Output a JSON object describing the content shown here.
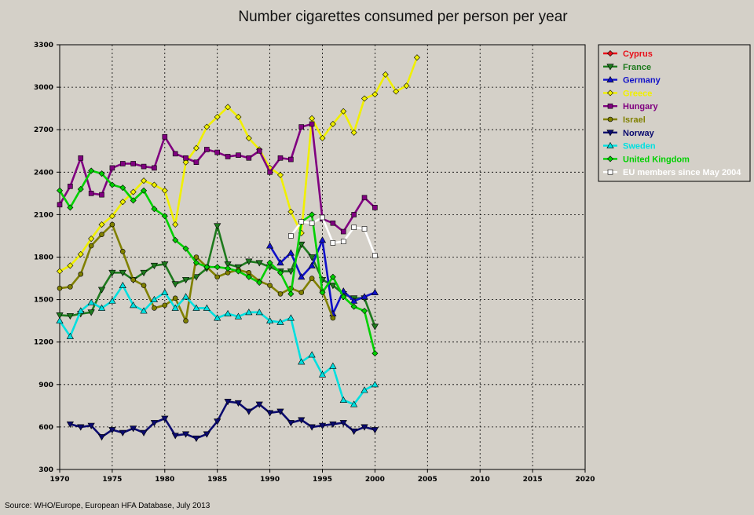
{
  "chart_data": {
    "type": "line",
    "title": "Number cigarettes consumed per person per year",
    "xlabel": "",
    "ylabel": "",
    "xlim": [
      1970,
      2020
    ],
    "ylim": [
      300,
      3300
    ],
    "x_ticks": [
      1970,
      1975,
      1980,
      1985,
      1990,
      1995,
      2000,
      2005,
      2010,
      2015,
      2020
    ],
    "y_ticks": [
      300,
      600,
      900,
      1200,
      1500,
      1800,
      2100,
      2400,
      2700,
      3000,
      3300
    ],
    "grid": true,
    "legend_position": "top-right",
    "source": "Source: WHO/Europe, European HFA Database, July 2013",
    "series": [
      {
        "name": "Cyprus",
        "color": "#e8101a",
        "marker": "diamond",
        "x": [],
        "y": []
      },
      {
        "name": "France",
        "color": "#1e7a1e",
        "marker": "triangle-down",
        "x": [
          1970,
          1971,
          1972,
          1973,
          1974,
          1975,
          1976,
          1977,
          1978,
          1979,
          1980,
          1981,
          1982,
          1983,
          1984,
          1985,
          1986,
          1987,
          1988,
          1989,
          1990,
          1991,
          1992,
          1993,
          1994,
          1995,
          1996,
          1997,
          1998,
          1999,
          2000
        ],
        "y": [
          1390,
          1385,
          1400,
          1410,
          1570,
          1690,
          1690,
          1640,
          1690,
          1740,
          1750,
          1610,
          1640,
          1660,
          1720,
          2020,
          1750,
          1730,
          1770,
          1760,
          1730,
          1700,
          1700,
          1890,
          1800,
          1640,
          1600,
          1540,
          1510,
          1510,
          1310
        ]
      },
      {
        "name": "Germany",
        "color": "#1010c8",
        "marker": "triangle-up",
        "x": [
          1990,
          1991,
          1992,
          1993,
          1994,
          1995,
          1996,
          1997,
          1998,
          1999,
          2000
        ],
        "y": [
          1880,
          1760,
          1830,
          1660,
          1740,
          1920,
          1400,
          1560,
          1490,
          1520,
          1550
        ]
      },
      {
        "name": "Greece",
        "color": "#f0f000",
        "marker": "diamond",
        "x": [
          1970,
          1971,
          1972,
          1973,
          1974,
          1975,
          1976,
          1977,
          1978,
          1979,
          1980,
          1981,
          1982,
          1983,
          1984,
          1985,
          1986,
          1987,
          1988,
          1989,
          1990,
          1991,
          1992,
          1993,
          1994,
          1995,
          1996,
          1997,
          1998,
          1999,
          2000,
          2001,
          2002,
          2003,
          2004
        ],
        "y": [
          1700,
          1740,
          1820,
          1930,
          2030,
          2090,
          2190,
          2260,
          2340,
          2310,
          2270,
          2030,
          2470,
          2570,
          2720,
          2790,
          2860,
          2790,
          2640,
          2560,
          2430,
          2380,
          2120,
          1970,
          2780,
          2640,
          2740,
          2830,
          2680,
          2920,
          2950,
          3090,
          2970,
          3010,
          3210
        ]
      },
      {
        "name": "Hungary",
        "color": "#800080",
        "marker": "square",
        "x": [
          1970,
          1971,
          1972,
          1973,
          1974,
          1975,
          1976,
          1977,
          1978,
          1979,
          1980,
          1981,
          1982,
          1983,
          1984,
          1985,
          1986,
          1987,
          1988,
          1989,
          1990,
          1991,
          1992,
          1993,
          1994,
          1995,
          1996,
          1997,
          1998,
          1999,
          2000
        ],
        "y": [
          2170,
          2300,
          2500,
          2250,
          2240,
          2430,
          2460,
          2460,
          2440,
          2430,
          2650,
          2530,
          2500,
          2470,
          2560,
          2540,
          2510,
          2520,
          2500,
          2550,
          2400,
          2500,
          2490,
          2720,
          2740,
          2070,
          2040,
          1980,
          2100,
          2220,
          2150
        ]
      },
      {
        "name": "Israel",
        "color": "#808000",
        "marker": "circle",
        "x": [
          1970,
          1971,
          1972,
          1973,
          1974,
          1975,
          1976,
          1977,
          1978,
          1979,
          1980,
          1981,
          1982,
          1983,
          1984,
          1985,
          1986,
          1987,
          1988,
          1989,
          1990,
          1991,
          1992,
          1993,
          1994,
          1995,
          1996
        ],
        "y": [
          1580,
          1590,
          1680,
          1880,
          1960,
          2030,
          1840,
          1640,
          1600,
          1440,
          1460,
          1510,
          1350,
          1800,
          1730,
          1660,
          1690,
          1710,
          1690,
          1630,
          1600,
          1540,
          1580,
          1550,
          1650,
          1560,
          1370
        ]
      },
      {
        "name": "Norway",
        "color": "#0a0a6e",
        "marker": "triangle-down",
        "x": [
          1971,
          1972,
          1973,
          1974,
          1975,
          1976,
          1977,
          1978,
          1979,
          1980,
          1981,
          1982,
          1983,
          1984,
          1985,
          1986,
          1987,
          1988,
          1989,
          1990,
          1991,
          1992,
          1993,
          1994,
          1995,
          1996,
          1997,
          1998,
          1999,
          2000
        ],
        "y": [
          620,
          600,
          610,
          530,
          580,
          560,
          590,
          560,
          630,
          660,
          540,
          550,
          520,
          550,
          640,
          780,
          770,
          710,
          760,
          700,
          710,
          630,
          650,
          600,
          610,
          620,
          630,
          570,
          600,
          580
        ]
      },
      {
        "name": "Sweden",
        "color": "#00e0e0",
        "marker": "triangle-up",
        "x": [
          1970,
          1971,
          1972,
          1973,
          1974,
          1975,
          1976,
          1977,
          1978,
          1979,
          1980,
          1981,
          1982,
          1983,
          1984,
          1985,
          1986,
          1987,
          1988,
          1989,
          1990,
          1991,
          1992,
          1993,
          1994,
          1995,
          1996,
          1997,
          1998,
          1999,
          2000
        ],
        "y": [
          1350,
          1240,
          1420,
          1480,
          1440,
          1490,
          1600,
          1460,
          1420,
          1500,
          1550,
          1440,
          1520,
          1440,
          1440,
          1370,
          1400,
          1380,
          1410,
          1410,
          1350,
          1340,
          1370,
          1060,
          1110,
          970,
          1030,
          790,
          760,
          860,
          900
        ]
      },
      {
        "name": "United Kingdom",
        "color": "#00d000",
        "marker": "diamond",
        "x": [
          1970,
          1971,
          1972,
          1973,
          1974,
          1975,
          1976,
          1977,
          1978,
          1979,
          1980,
          1981,
          1982,
          1983,
          1984,
          1985,
          1986,
          1987,
          1988,
          1989,
          1990,
          1991,
          1992,
          1993,
          1994,
          1995,
          1996,
          1997,
          1998,
          1999,
          2000
        ],
        "y": [
          2270,
          2150,
          2280,
          2410,
          2390,
          2310,
          2290,
          2200,
          2270,
          2140,
          2090,
          1920,
          1860,
          1760,
          1730,
          1730,
          1720,
          1700,
          1660,
          1620,
          1760,
          1690,
          1540,
          2050,
          2100,
          1550,
          1660,
          1520,
          1450,
          1420,
          1120
        ]
      },
      {
        "name": "EU members since May 2004",
        "color": "#ffffff",
        "marker": "square",
        "x": [
          1992,
          1993,
          1994,
          1995,
          1996,
          1997,
          1998,
          1999,
          2000
        ],
        "y": [
          1950,
          2050,
          2040,
          2080,
          1900,
          1910,
          2010,
          2000,
          1810
        ]
      }
    ]
  }
}
